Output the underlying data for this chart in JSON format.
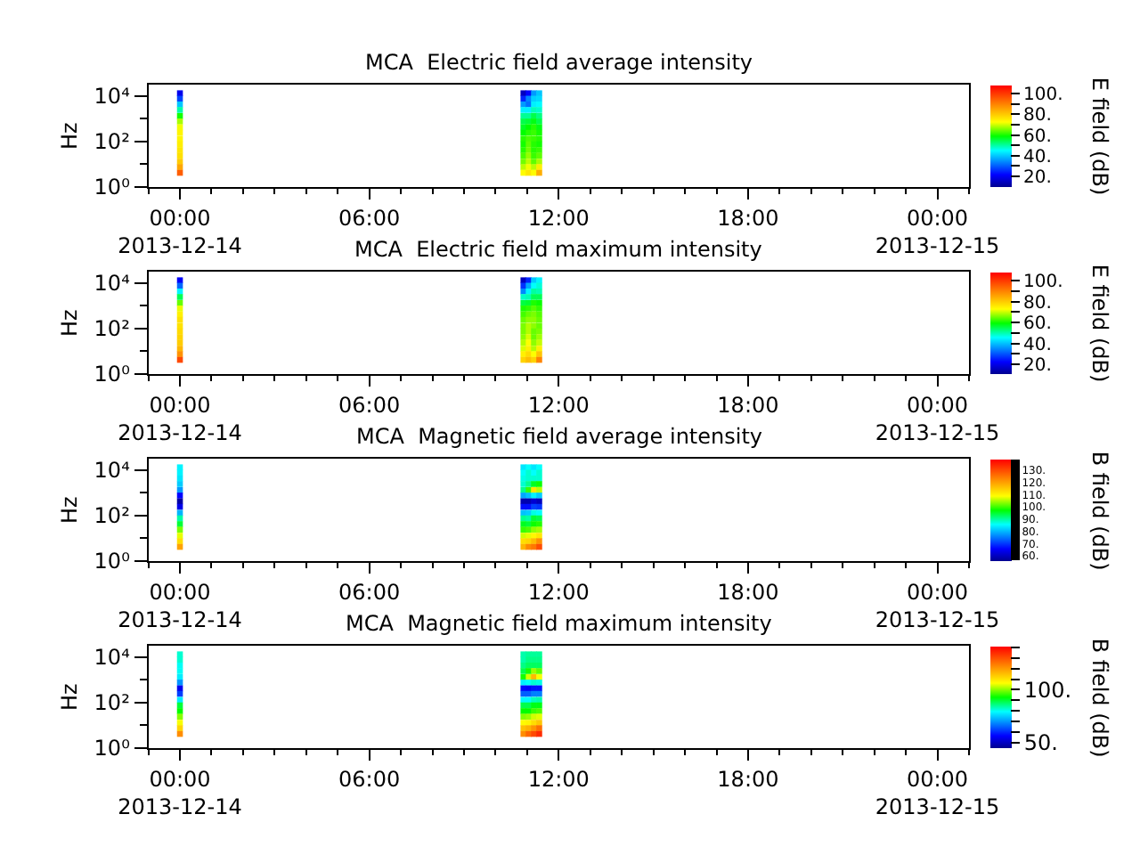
{
  "chart_data": [
    {
      "type": "scatter",
      "title": "MCA  Electric field average intensity",
      "ylabel": "Hz",
      "clabel": "E field (dB)",
      "marker": "square",
      "x": [
        "2013-12-14T00:00",
        "2013-12-14T00:00",
        "2013-12-14T00:00",
        "2013-12-14T00:00",
        "2013-12-14T00:00",
        "2013-12-14T00:00",
        "2013-12-14T00:00",
        "2013-12-14T00:00",
        "2013-12-14T00:00",
        "2013-12-14T00:00",
        "2013-12-14T00:00",
        "2013-12-14T00:00",
        "2013-12-14T00:00",
        "2013-12-14T00:00",
        "2013-12-14T00:00",
        "2013-12-14T10:53",
        "2013-12-14T10:53",
        "2013-12-14T10:53",
        "2013-12-14T10:53",
        "2013-12-14T10:53",
        "2013-12-14T10:53",
        "2013-12-14T10:53",
        "2013-12-14T10:53",
        "2013-12-14T10:53",
        "2013-12-14T10:53",
        "2013-12-14T10:53",
        "2013-12-14T10:53",
        "2013-12-14T10:53",
        "2013-12-14T10:53",
        "2013-12-14T10:53",
        "2013-12-14T11:03",
        "2013-12-14T11:03",
        "2013-12-14T11:03",
        "2013-12-14T11:03",
        "2013-12-14T11:03",
        "2013-12-14T11:03",
        "2013-12-14T11:03",
        "2013-12-14T11:03",
        "2013-12-14T11:03",
        "2013-12-14T11:03",
        "2013-12-14T11:03",
        "2013-12-14T11:03",
        "2013-12-14T11:03",
        "2013-12-14T11:03",
        "2013-12-14T11:03",
        "2013-12-14T11:13",
        "2013-12-14T11:13",
        "2013-12-14T11:13",
        "2013-12-14T11:13",
        "2013-12-14T11:13",
        "2013-12-14T11:13",
        "2013-12-14T11:13",
        "2013-12-14T11:13",
        "2013-12-14T11:13",
        "2013-12-14T11:13",
        "2013-12-14T11:13",
        "2013-12-14T11:13",
        "2013-12-14T11:13",
        "2013-12-14T11:13",
        "2013-12-14T11:13",
        "2013-12-14T11:23",
        "2013-12-14T11:23",
        "2013-12-14T11:23",
        "2013-12-14T11:23",
        "2013-12-14T11:23",
        "2013-12-14T11:23",
        "2013-12-14T11:23",
        "2013-12-14T11:23",
        "2013-12-14T11:23",
        "2013-12-14T11:23",
        "2013-12-14T11:23",
        "2013-12-14T11:23",
        "2013-12-14T11:23",
        "2013-12-14T11:23",
        "2013-12-14T11:23"
      ],
      "values": [
        13000,
        7500,
        4200,
        2400,
        1300,
        750,
        420,
        240,
        130,
        75,
        42,
        24,
        13,
        7.5,
        4.2,
        13000,
        7500,
        4200,
        2400,
        1300,
        750,
        420,
        240,
        130,
        75,
        42,
        24,
        13,
        7.5,
        4.2,
        13000,
        7500,
        4200,
        2400,
        1300,
        750,
        420,
        240,
        130,
        75,
        42,
        24,
        13,
        7.5,
        4.2,
        13000,
        7500,
        4200,
        2400,
        1300,
        750,
        420,
        240,
        130,
        75,
        42,
        24,
        13,
        7.5,
        4.2,
        13000,
        7500,
        4200,
        2400,
        1300,
        750,
        420,
        240,
        130,
        75,
        42,
        24,
        13,
        7.5,
        4.2
      ],
      "cvalues": [
        20,
        28,
        40,
        50,
        60,
        68,
        72,
        74,
        74,
        75,
        76,
        77,
        80,
        85,
        95,
        15,
        25,
        36,
        44,
        51,
        55,
        57,
        59,
        61,
        60,
        61,
        63,
        65,
        69,
        73,
        22,
        34,
        32,
        44,
        51,
        56,
        59,
        61,
        63,
        64,
        65,
        67,
        69,
        72,
        76,
        36,
        41,
        44,
        49,
        55,
        58,
        61,
        62,
        62,
        61,
        61,
        62,
        64,
        69,
        73,
        40,
        42,
        45,
        48,
        52,
        55,
        58,
        60,
        61,
        60,
        62,
        64,
        68,
        75,
        84
      ],
      "clim": [
        10,
        108
      ],
      "cticks": [
        {
          "value": 20,
          "label": "20."
        },
        {
          "value": 30,
          "label": null
        },
        {
          "value": 40,
          "label": "40."
        },
        {
          "value": 50,
          "label": null
        },
        {
          "value": 60,
          "label": "60."
        },
        {
          "value": 70,
          "label": null
        },
        {
          "value": 80,
          "label": "80."
        },
        {
          "value": 90,
          "label": null
        },
        {
          "value": 100,
          "label": "100."
        }
      ],
      "xlim": [
        "2013-12-13T23:00",
        "2013-12-15T01:00"
      ],
      "xticks": [
        {
          "value": "2013-12-13T23:00",
          "label": null
        },
        {
          "value": "2013-12-14T00:00",
          "label": "00:00\n2013-12-14"
        },
        {
          "value": "2013-12-14T01:00",
          "label": null
        },
        {
          "value": "2013-12-14T02:00",
          "label": null
        },
        {
          "value": "2013-12-14T03:00",
          "label": null
        },
        {
          "value": "2013-12-14T04:00",
          "label": null
        },
        {
          "value": "2013-12-14T05:00",
          "label": null
        },
        {
          "value": "2013-12-14T06:00",
          "label": "06:00"
        },
        {
          "value": "2013-12-14T07:00",
          "label": null
        },
        {
          "value": "2013-12-14T08:00",
          "label": null
        },
        {
          "value": "2013-12-14T09:00",
          "label": null
        },
        {
          "value": "2013-12-14T10:00",
          "label": null
        },
        {
          "value": "2013-12-14T11:00",
          "label": null
        },
        {
          "value": "2013-12-14T12:00",
          "label": "12:00"
        },
        {
          "value": "2013-12-14T13:00",
          "label": null
        },
        {
          "value": "2013-12-14T14:00",
          "label": null
        },
        {
          "value": "2013-12-14T15:00",
          "label": null
        },
        {
          "value": "2013-12-14T16:00",
          "label": null
        },
        {
          "value": "2013-12-14T17:00",
          "label": null
        },
        {
          "value": "2013-12-14T18:00",
          "label": "18:00"
        },
        {
          "value": "2013-12-14T19:00",
          "label": null
        },
        {
          "value": "2013-12-14T20:00",
          "label": null
        },
        {
          "value": "2013-12-14T21:00",
          "label": null
        },
        {
          "value": "2013-12-14T22:00",
          "label": null
        },
        {
          "value": "2013-12-14T23:00",
          "label": null
        },
        {
          "value": "2013-12-15T00:00",
          "label": "00:00\n2013-12-15"
        },
        {
          "value": "2013-12-15T01:00",
          "label": null
        }
      ],
      "ylim": [
        1,
        30000
      ],
      "yticks": [
        {
          "value": 1,
          "label": "10⁰"
        },
        {
          "value": 10,
          "label": null
        },
        {
          "value": 100,
          "label": "10²"
        },
        {
          "value": 1000,
          "label": null
        },
        {
          "value": 10000,
          "label": "10⁴"
        }
      ],
      "log": "y"
    },
    {
      "type": "scatter",
      "title": "MCA  Electric field maximum intensity",
      "ylabel": "Hz",
      "clabel": "E field (dB)",
      "marker": "square",
      "x": [
        "2013-12-14T00:00",
        "2013-12-14T00:00",
        "2013-12-14T00:00",
        "2013-12-14T00:00",
        "2013-12-14T00:00",
        "2013-12-14T00:00",
        "2013-12-14T00:00",
        "2013-12-14T00:00",
        "2013-12-14T00:00",
        "2013-12-14T00:00",
        "2013-12-14T00:00",
        "2013-12-14T00:00",
        "2013-12-14T00:00",
        "2013-12-14T00:00",
        "2013-12-14T00:00",
        "2013-12-14T10:53",
        "2013-12-14T10:53",
        "2013-12-14T10:53",
        "2013-12-14T10:53",
        "2013-12-14T10:53",
        "2013-12-14T10:53",
        "2013-12-14T10:53",
        "2013-12-14T10:53",
        "2013-12-14T10:53",
        "2013-12-14T10:53",
        "2013-12-14T10:53",
        "2013-12-14T10:53",
        "2013-12-14T10:53",
        "2013-12-14T10:53",
        "2013-12-14T10:53",
        "2013-12-14T11:03",
        "2013-12-14T11:03",
        "2013-12-14T11:03",
        "2013-12-14T11:03",
        "2013-12-14T11:03",
        "2013-12-14T11:03",
        "2013-12-14T11:03",
        "2013-12-14T11:03",
        "2013-12-14T11:03",
        "2013-12-14T11:03",
        "2013-12-14T11:03",
        "2013-12-14T11:03",
        "2013-12-14T11:03",
        "2013-12-14T11:03",
        "2013-12-14T11:03",
        "2013-12-14T11:13",
        "2013-12-14T11:13",
        "2013-12-14T11:13",
        "2013-12-14T11:13",
        "2013-12-14T11:13",
        "2013-12-14T11:13",
        "2013-12-14T11:13",
        "2013-12-14T11:13",
        "2013-12-14T11:13",
        "2013-12-14T11:13",
        "2013-12-14T11:13",
        "2013-12-14T11:13",
        "2013-12-14T11:13",
        "2013-12-14T11:13",
        "2013-12-14T11:13",
        "2013-12-14T11:23",
        "2013-12-14T11:23",
        "2013-12-14T11:23",
        "2013-12-14T11:23",
        "2013-12-14T11:23",
        "2013-12-14T11:23",
        "2013-12-14T11:23",
        "2013-12-14T11:23",
        "2013-12-14T11:23",
        "2013-12-14T11:23",
        "2013-12-14T11:23",
        "2013-12-14T11:23",
        "2013-12-14T11:23",
        "2013-12-14T11:23",
        "2013-12-14T11:23"
      ],
      "values": [
        13000,
        7500,
        4200,
        2400,
        1300,
        750,
        420,
        240,
        130,
        75,
        42,
        24,
        13,
        7.5,
        4.2,
        13000,
        7500,
        4200,
        2400,
        1300,
        750,
        420,
        240,
        130,
        75,
        42,
        24,
        13,
        7.5,
        4.2,
        13000,
        7500,
        4200,
        2400,
        1300,
        750,
        420,
        240,
        130,
        75,
        42,
        24,
        13,
        7.5,
        4.2,
        13000,
        7500,
        4200,
        2400,
        1300,
        750,
        420,
        240,
        130,
        75,
        42,
        24,
        13,
        7.5,
        4.2,
        13000,
        7500,
        4200,
        2400,
        1300,
        750,
        420,
        240,
        130,
        75,
        42,
        24,
        13,
        7.5,
        4.2
      ],
      "cvalues": [
        22,
        32,
        45,
        55,
        65,
        72,
        75,
        77,
        77,
        78,
        79,
        80,
        83,
        88,
        98,
        16,
        27,
        35,
        49,
        56,
        61,
        63,
        65,
        66,
        66,
        67,
        69,
        71,
        75,
        79,
        26,
        38,
        45,
        50,
        57,
        62,
        65,
        67,
        69,
        69,
        71,
        73,
        75,
        78,
        82,
        41,
        46,
        51,
        55,
        61,
        64,
        66,
        67,
        67,
        65,
        65,
        67,
        69,
        73,
        79,
        45,
        48,
        50,
        55,
        60,
        62,
        64,
        65,
        65,
        66,
        68,
        70,
        75,
        81,
        90
      ],
      "clim": [
        11,
        108
      ],
      "cticks": [
        {
          "value": 20,
          "label": "20."
        },
        {
          "value": 30,
          "label": null
        },
        {
          "value": 40,
          "label": "40."
        },
        {
          "value": 50,
          "label": null
        },
        {
          "value": 60,
          "label": "60."
        },
        {
          "value": 70,
          "label": null
        },
        {
          "value": 80,
          "label": "80."
        },
        {
          "value": 90,
          "label": null
        },
        {
          "value": 100,
          "label": "100."
        }
      ],
      "xlim": [
        "2013-12-13T23:00",
        "2013-12-15T01:00"
      ],
      "xticks": [
        {
          "value": "2013-12-13T23:00",
          "label": null
        },
        {
          "value": "2013-12-14T00:00",
          "label": "00:00\n2013-12-14"
        },
        {
          "value": "2013-12-14T01:00",
          "label": null
        },
        {
          "value": "2013-12-14T02:00",
          "label": null
        },
        {
          "value": "2013-12-14T03:00",
          "label": null
        },
        {
          "value": "2013-12-14T04:00",
          "label": null
        },
        {
          "value": "2013-12-14T05:00",
          "label": null
        },
        {
          "value": "2013-12-14T06:00",
          "label": "06:00"
        },
        {
          "value": "2013-12-14T07:00",
          "label": null
        },
        {
          "value": "2013-12-14T08:00",
          "label": null
        },
        {
          "value": "2013-12-14T09:00",
          "label": null
        },
        {
          "value": "2013-12-14T10:00",
          "label": null
        },
        {
          "value": "2013-12-14T11:00",
          "label": null
        },
        {
          "value": "2013-12-14T12:00",
          "label": "12:00"
        },
        {
          "value": "2013-12-14T13:00",
          "label": null
        },
        {
          "value": "2013-12-14T14:00",
          "label": null
        },
        {
          "value": "2013-12-14T15:00",
          "label": null
        },
        {
          "value": "2013-12-14T16:00",
          "label": null
        },
        {
          "value": "2013-12-14T17:00",
          "label": null
        },
        {
          "value": "2013-12-14T18:00",
          "label": "18:00"
        },
        {
          "value": "2013-12-14T19:00",
          "label": null
        },
        {
          "value": "2013-12-14T20:00",
          "label": null
        },
        {
          "value": "2013-12-14T21:00",
          "label": null
        },
        {
          "value": "2013-12-14T22:00",
          "label": null
        },
        {
          "value": "2013-12-14T23:00",
          "label": null
        },
        {
          "value": "2013-12-15T00:00",
          "label": "00:00\n2013-12-15"
        },
        {
          "value": "2013-12-15T01:00",
          "label": null
        }
      ],
      "ylim": [
        1,
        30000
      ],
      "yticks": [
        {
          "value": 1,
          "label": "10⁰"
        },
        {
          "value": 10,
          "label": null
        },
        {
          "value": 100,
          "label": "10²"
        },
        {
          "value": 1000,
          "label": null
        },
        {
          "value": 10000,
          "label": "10⁴"
        }
      ],
      "log": "y"
    },
    {
      "type": "scatter",
      "title": "MCA  Magnetic field average intensity",
      "ylabel": "Hz",
      "clabel": "B field (dB)",
      "marker": "square",
      "x": [
        "2013-12-14T00:00",
        "2013-12-14T00:00",
        "2013-12-14T00:00",
        "2013-12-14T00:00",
        "2013-12-14T00:00",
        "2013-12-14T00:00",
        "2013-12-14T00:00",
        "2013-12-14T00:00",
        "2013-12-14T00:00",
        "2013-12-14T00:00",
        "2013-12-14T00:00",
        "2013-12-14T00:00",
        "2013-12-14T00:00",
        "2013-12-14T00:00",
        "2013-12-14T00:00",
        "2013-12-14T10:53",
        "2013-12-14T10:53",
        "2013-12-14T10:53",
        "2013-12-14T10:53",
        "2013-12-14T10:53",
        "2013-12-14T10:53",
        "2013-12-14T10:53",
        "2013-12-14T10:53",
        "2013-12-14T10:53",
        "2013-12-14T10:53",
        "2013-12-14T10:53",
        "2013-12-14T10:53",
        "2013-12-14T10:53",
        "2013-12-14T10:53",
        "2013-12-14T10:53",
        "2013-12-14T11:03",
        "2013-12-14T11:03",
        "2013-12-14T11:03",
        "2013-12-14T11:03",
        "2013-12-14T11:03",
        "2013-12-14T11:03",
        "2013-12-14T11:03",
        "2013-12-14T11:03",
        "2013-12-14T11:03",
        "2013-12-14T11:03",
        "2013-12-14T11:03",
        "2013-12-14T11:03",
        "2013-12-14T11:03",
        "2013-12-14T11:03",
        "2013-12-14T11:03",
        "2013-12-14T11:13",
        "2013-12-14T11:13",
        "2013-12-14T11:13",
        "2013-12-14T11:13",
        "2013-12-14T11:13",
        "2013-12-14T11:13",
        "2013-12-14T11:13",
        "2013-12-14T11:13",
        "2013-12-14T11:13",
        "2013-12-14T11:13",
        "2013-12-14T11:13",
        "2013-12-14T11:13",
        "2013-12-14T11:13",
        "2013-12-14T11:13",
        "2013-12-14T11:13",
        "2013-12-14T11:23",
        "2013-12-14T11:23",
        "2013-12-14T11:23",
        "2013-12-14T11:23",
        "2013-12-14T11:23",
        "2013-12-14T11:23",
        "2013-12-14T11:23",
        "2013-12-14T11:23",
        "2013-12-14T11:23",
        "2013-12-14T11:23",
        "2013-12-14T11:23",
        "2013-12-14T11:23",
        "2013-12-14T11:23",
        "2013-12-14T11:23",
        "2013-12-14T11:23"
      ],
      "values": [
        13000,
        7500,
        4200,
        2400,
        1300,
        750,
        420,
        240,
        130,
        75,
        42,
        24,
        13,
        7.5,
        4.2,
        13000,
        7500,
        4200,
        2400,
        1300,
        750,
        420,
        240,
        130,
        75,
        42,
        24,
        13,
        7.5,
        4.2,
        13000,
        7500,
        4200,
        2400,
        1300,
        750,
        420,
        240,
        130,
        75,
        42,
        24,
        13,
        7.5,
        4.2,
        13000,
        7500,
        4200,
        2400,
        1300,
        750,
        420,
        240,
        130,
        75,
        42,
        24,
        13,
        7.5,
        4.2,
        13000,
        7500,
        4200,
        2400,
        1300,
        750,
        420,
        240,
        130,
        75,
        42,
        24,
        13,
        7.5,
        4.2
      ],
      "cvalues": [
        85,
        85,
        84,
        82,
        78,
        66,
        58,
        64,
        80,
        90,
        95,
        103,
        108,
        113,
        120,
        84,
        86,
        87,
        88,
        91,
        79,
        59,
        67,
        81,
        91,
        96,
        100,
        107,
        113,
        118,
        86,
        88,
        88,
        91,
        100,
        81,
        59,
        67,
        82,
        90,
        95,
        101,
        108,
        114,
        123,
        84,
        86,
        88,
        96,
        112,
        85,
        62,
        71,
        87,
        95,
        98,
        104,
        110,
        117,
        125,
        86,
        88,
        88,
        98,
        106,
        82,
        60,
        70,
        86,
        94,
        99,
        105,
        112,
        122,
        130
      ],
      "clim": [
        56,
        139
      ],
      "cticks": [
        {
          "value": 57,
          "label": null
        },
        {
          "value": 58,
          "label": null
        },
        {
          "value": 59,
          "label": null
        },
        {
          "value": 60,
          "label": "60."
        },
        {
          "value": 61,
          "label": null
        },
        {
          "value": 62,
          "label": null
        },
        {
          "value": 63,
          "label": null
        },
        {
          "value": 64,
          "label": null
        },
        {
          "value": 65,
          "label": null
        },
        {
          "value": 66,
          "label": null
        },
        {
          "value": 67,
          "label": null
        },
        {
          "value": 68,
          "label": null
        },
        {
          "value": 69,
          "label": null
        },
        {
          "value": 70,
          "label": "70."
        },
        {
          "value": 71,
          "label": null
        },
        {
          "value": 72,
          "label": null
        },
        {
          "value": 73,
          "label": null
        },
        {
          "value": 74,
          "label": null
        },
        {
          "value": 75,
          "label": null
        },
        {
          "value": 76,
          "label": null
        },
        {
          "value": 77,
          "label": null
        },
        {
          "value": 78,
          "label": null
        },
        {
          "value": 79,
          "label": null
        },
        {
          "value": 80,
          "label": "80."
        },
        {
          "value": 81,
          "label": null
        },
        {
          "value": 82,
          "label": null
        },
        {
          "value": 83,
          "label": null
        },
        {
          "value": 84,
          "label": null
        },
        {
          "value": 85,
          "label": null
        },
        {
          "value": 86,
          "label": null
        },
        {
          "value": 87,
          "label": null
        },
        {
          "value": 88,
          "label": null
        },
        {
          "value": 89,
          "label": null
        },
        {
          "value": 90,
          "label": "90."
        },
        {
          "value": 91,
          "label": null
        },
        {
          "value": 92,
          "label": null
        },
        {
          "value": 93,
          "label": null
        },
        {
          "value": 94,
          "label": null
        },
        {
          "value": 95,
          "label": null
        },
        {
          "value": 96,
          "label": null
        },
        {
          "value": 97,
          "label": null
        },
        {
          "value": 98,
          "label": null
        },
        {
          "value": 99,
          "label": null
        },
        {
          "value": 100,
          "label": "100."
        },
        {
          "value": 101,
          "label": null
        },
        {
          "value": 102,
          "label": null
        },
        {
          "value": 103,
          "label": null
        },
        {
          "value": 104,
          "label": null
        },
        {
          "value": 105,
          "label": null
        },
        {
          "value": 106,
          "label": null
        },
        {
          "value": 107,
          "label": null
        },
        {
          "value": 108,
          "label": null
        },
        {
          "value": 109,
          "label": null
        },
        {
          "value": 110,
          "label": "110."
        },
        {
          "value": 111,
          "label": null
        },
        {
          "value": 112,
          "label": null
        },
        {
          "value": 113,
          "label": null
        },
        {
          "value": 114,
          "label": null
        },
        {
          "value": 115,
          "label": null
        },
        {
          "value": 116,
          "label": null
        },
        {
          "value": 117,
          "label": null
        },
        {
          "value": 118,
          "label": null
        },
        {
          "value": 119,
          "label": null
        },
        {
          "value": 120,
          "label": "120."
        },
        {
          "value": 121,
          "label": null
        },
        {
          "value": 122,
          "label": null
        },
        {
          "value": 123,
          "label": null
        },
        {
          "value": 124,
          "label": null
        },
        {
          "value": 125,
          "label": null
        },
        {
          "value": 126,
          "label": null
        },
        {
          "value": 127,
          "label": null
        },
        {
          "value": 128,
          "label": null
        },
        {
          "value": 129,
          "label": null
        },
        {
          "value": 130,
          "label": "130."
        },
        {
          "value": 131,
          "label": null
        },
        {
          "value": 132,
          "label": null
        },
        {
          "value": 133,
          "label": null
        },
        {
          "value": 134,
          "label": null
        },
        {
          "value": 135,
          "label": null
        },
        {
          "value": 136,
          "label": null
        },
        {
          "value": 137,
          "label": null
        },
        {
          "value": 138,
          "label": null
        }
      ],
      "xlim": [
        "2013-12-13T23:00",
        "2013-12-15T01:00"
      ],
      "xticks": [
        {
          "value": "2013-12-13T23:00",
          "label": null
        },
        {
          "value": "2013-12-14T00:00",
          "label": "00:00\n2013-12-14"
        },
        {
          "value": "2013-12-14T01:00",
          "label": null
        },
        {
          "value": "2013-12-14T02:00",
          "label": null
        },
        {
          "value": "2013-12-14T03:00",
          "label": null
        },
        {
          "value": "2013-12-14T04:00",
          "label": null
        },
        {
          "value": "2013-12-14T05:00",
          "label": null
        },
        {
          "value": "2013-12-14T06:00",
          "label": "06:00"
        },
        {
          "value": "2013-12-14T07:00",
          "label": null
        },
        {
          "value": "2013-12-14T08:00",
          "label": null
        },
        {
          "value": "2013-12-14T09:00",
          "label": null
        },
        {
          "value": "2013-12-14T10:00",
          "label": null
        },
        {
          "value": "2013-12-14T11:00",
          "label": null
        },
        {
          "value": "2013-12-14T12:00",
          "label": "12:00"
        },
        {
          "value": "2013-12-14T13:00",
          "label": null
        },
        {
          "value": "2013-12-14T14:00",
          "label": null
        },
        {
          "value": "2013-12-14T15:00",
          "label": null
        },
        {
          "value": "2013-12-14T16:00",
          "label": null
        },
        {
          "value": "2013-12-14T17:00",
          "label": null
        },
        {
          "value": "2013-12-14T18:00",
          "label": "18:00"
        },
        {
          "value": "2013-12-14T19:00",
          "label": null
        },
        {
          "value": "2013-12-14T20:00",
          "label": null
        },
        {
          "value": "2013-12-14T21:00",
          "label": null
        },
        {
          "value": "2013-12-14T22:00",
          "label": null
        },
        {
          "value": "2013-12-14T23:00",
          "label": null
        },
        {
          "value": "2013-12-15T00:00",
          "label": "00:00\n2013-12-15"
        },
        {
          "value": "2013-12-15T01:00",
          "label": null
        }
      ],
      "ylim": [
        1,
        30000
      ],
      "yticks": [
        {
          "value": 1,
          "label": "10⁰"
        },
        {
          "value": 10,
          "label": null
        },
        {
          "value": 100,
          "label": "10²"
        },
        {
          "value": 1000,
          "label": null
        },
        {
          "value": 10000,
          "label": "10⁴"
        }
      ],
      "log": "y"
    },
    {
      "type": "scatter",
      "title": "MCA  Magnetic field maximum intensity",
      "ylabel": "Hz",
      "clabel": "B field (dB)",
      "marker": "square",
      "x": [
        "2013-12-14T00:00",
        "2013-12-14T00:00",
        "2013-12-14T00:00",
        "2013-12-14T00:00",
        "2013-12-14T00:00",
        "2013-12-14T00:00",
        "2013-12-14T00:00",
        "2013-12-14T00:00",
        "2013-12-14T00:00",
        "2013-12-14T00:00",
        "2013-12-14T00:00",
        "2013-12-14T00:00",
        "2013-12-14T00:00",
        "2013-12-14T00:00",
        "2013-12-14T00:00",
        "2013-12-14T10:53",
        "2013-12-14T10:53",
        "2013-12-14T10:53",
        "2013-12-14T10:53",
        "2013-12-14T10:53",
        "2013-12-14T10:53",
        "2013-12-14T10:53",
        "2013-12-14T10:53",
        "2013-12-14T10:53",
        "2013-12-14T10:53",
        "2013-12-14T10:53",
        "2013-12-14T10:53",
        "2013-12-14T10:53",
        "2013-12-14T10:53",
        "2013-12-14T10:53",
        "2013-12-14T11:03",
        "2013-12-14T11:03",
        "2013-12-14T11:03",
        "2013-12-14T11:03",
        "2013-12-14T11:03",
        "2013-12-14T11:03",
        "2013-12-14T11:03",
        "2013-12-14T11:03",
        "2013-12-14T11:03",
        "2013-12-14T11:03",
        "2013-12-14T11:03",
        "2013-12-14T11:03",
        "2013-12-14T11:03",
        "2013-12-14T11:03",
        "2013-12-14T11:03",
        "2013-12-14T11:13",
        "2013-12-14T11:13",
        "2013-12-14T11:13",
        "2013-12-14T11:13",
        "2013-12-14T11:13",
        "2013-12-14T11:13",
        "2013-12-14T11:13",
        "2013-12-14T11:13",
        "2013-12-14T11:13",
        "2013-12-14T11:13",
        "2013-12-14T11:13",
        "2013-12-14T11:13",
        "2013-12-14T11:13",
        "2013-12-14T11:13",
        "2013-12-14T11:13",
        "2013-12-14T11:23",
        "2013-12-14T11:23",
        "2013-12-14T11:23",
        "2013-12-14T11:23",
        "2013-12-14T11:23",
        "2013-12-14T11:23",
        "2013-12-14T11:23",
        "2013-12-14T11:23",
        "2013-12-14T11:23",
        "2013-12-14T11:23",
        "2013-12-14T11:23",
        "2013-12-14T11:23",
        "2013-12-14T11:23",
        "2013-12-14T11:23",
        "2013-12-14T11:23"
      ],
      "values": [
        13000,
        7500,
        4200,
        2400,
        1300,
        750,
        420,
        240,
        130,
        75,
        42,
        24,
        13,
        7.5,
        4.2,
        13000,
        7500,
        4200,
        2400,
        1300,
        750,
        420,
        240,
        130,
        75,
        42,
        24,
        13,
        7.5,
        4.2,
        13000,
        7500,
        4200,
        2400,
        1300,
        750,
        420,
        240,
        130,
        75,
        42,
        24,
        13,
        7.5,
        4.2,
        13000,
        7500,
        4200,
        2400,
        1300,
        750,
        420,
        240,
        130,
        75,
        42,
        24,
        13,
        7.5,
        4.2,
        13000,
        7500,
        4200,
        2400,
        1300,
        750,
        420,
        240,
        130,
        75,
        42,
        24,
        13,
        7.5,
        4.2
      ],
      "cvalues": [
        82,
        82,
        80,
        80,
        78,
        70,
        55,
        62,
        78,
        90,
        93,
        100,
        106,
        112,
        122,
        84,
        84,
        86,
        89,
        94,
        78,
        57,
        65,
        79,
        89,
        93,
        100,
        107,
        115,
        122,
        85,
        86,
        88,
        94,
        104,
        80,
        56,
        65,
        79,
        89,
        93,
        101,
        108,
        117,
        127,
        85,
        86,
        88,
        101,
        116,
        82,
        58,
        68,
        83,
        92,
        96,
        104,
        111,
        121,
        131,
        85,
        86,
        88,
        98,
        106,
        81,
        58,
        68,
        84,
        92,
        97,
        105,
        114,
        126,
        135
      ],
      "clim": [
        45,
        141
      ],
      "cticks": [
        {
          "value": 50,
          "label": "50."
        },
        {
          "value": 60,
          "label": null
        },
        {
          "value": 70,
          "label": null
        },
        {
          "value": 80,
          "label": null
        },
        {
          "value": 90,
          "label": null
        },
        {
          "value": 100,
          "label": "100."
        },
        {
          "value": 110,
          "label": null
        },
        {
          "value": 120,
          "label": null
        },
        {
          "value": 130,
          "label": null
        },
        {
          "value": 140,
          "label": null
        }
      ],
      "xlim": [
        "2013-12-13T23:00",
        "2013-12-15T01:00"
      ],
      "xticks": [
        {
          "value": "2013-12-13T23:00",
          "label": null
        },
        {
          "value": "2013-12-14T00:00",
          "label": "00:00\n2013-12-14"
        },
        {
          "value": "2013-12-14T01:00",
          "label": null
        },
        {
          "value": "2013-12-14T02:00",
          "label": null
        },
        {
          "value": "2013-12-14T03:00",
          "label": null
        },
        {
          "value": "2013-12-14T04:00",
          "label": null
        },
        {
          "value": "2013-12-14T05:00",
          "label": null
        },
        {
          "value": "2013-12-14T06:00",
          "label": "06:00"
        },
        {
          "value": "2013-12-14T07:00",
          "label": null
        },
        {
          "value": "2013-12-14T08:00",
          "label": null
        },
        {
          "value": "2013-12-14T09:00",
          "label": null
        },
        {
          "value": "2013-12-14T10:00",
          "label": null
        },
        {
          "value": "2013-12-14T11:00",
          "label": null
        },
        {
          "value": "2013-12-14T12:00",
          "label": "12:00"
        },
        {
          "value": "2013-12-14T13:00",
          "label": null
        },
        {
          "value": "2013-12-14T14:00",
          "label": null
        },
        {
          "value": "2013-12-14T15:00",
          "label": null
        },
        {
          "value": "2013-12-14T16:00",
          "label": null
        },
        {
          "value": "2013-12-14T17:00",
          "label": null
        },
        {
          "value": "2013-12-14T18:00",
          "label": "18:00"
        },
        {
          "value": "2013-12-14T19:00",
          "label": null
        },
        {
          "value": "2013-12-14T20:00",
          "label": null
        },
        {
          "value": "2013-12-14T21:00",
          "label": null
        },
        {
          "value": "2013-12-14T22:00",
          "label": null
        },
        {
          "value": "2013-12-14T23:00",
          "label": null
        },
        {
          "value": "2013-12-15T00:00",
          "label": "00:00\n2013-12-15"
        },
        {
          "value": "2013-12-15T01:00",
          "label": null
        }
      ],
      "ylim": [
        1,
        30000
      ],
      "yticks": [
        {
          "value": 1,
          "label": "10⁰"
        },
        {
          "value": 10,
          "label": null
        },
        {
          "value": 100,
          "label": "10²"
        },
        {
          "value": 1000,
          "label": null
        },
        {
          "value": 10000,
          "label": "10⁴"
        }
      ],
      "log": "y"
    }
  ]
}
